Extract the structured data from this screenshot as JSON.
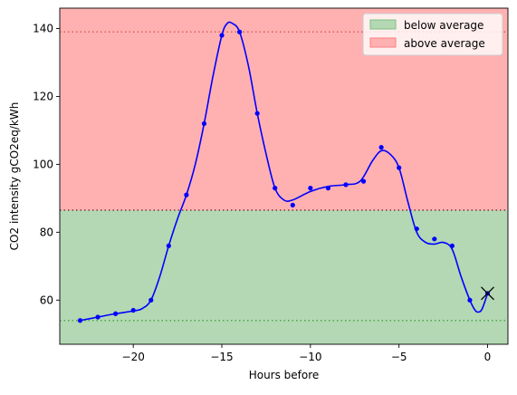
{
  "chart_data": {
    "type": "line",
    "title": "",
    "xlabel": "Hours before",
    "ylabel": "CO2 intensity gCO2eq/kWh",
    "xlim": [
      -24.15,
      1.15
    ],
    "ylim": [
      47,
      146
    ],
    "x_ticks": [
      -20,
      -15,
      -10,
      -5,
      0
    ],
    "x_tick_labels": [
      "−20",
      "−15",
      "−10",
      "−5",
      "0"
    ],
    "y_ticks": [
      60,
      80,
      100,
      120,
      140
    ],
    "y_tick_labels": [
      "60",
      "80",
      "100",
      "120",
      "140"
    ],
    "grid": false,
    "legend_position": "top-right",
    "average": 86.5,
    "min_line": 54,
    "max_line": 139,
    "bands": [
      {
        "name": "below average",
        "from": 47,
        "to": 86.5,
        "color": "#b3d8b3"
      },
      {
        "name": "above average",
        "from": 86.5,
        "to": 146,
        "color": "#ffb1b1"
      }
    ],
    "series": [
      {
        "type": "scatter",
        "color": "#0000ff",
        "x": [
          -23,
          -22,
          -21,
          -20,
          -19,
          -18,
          -17,
          -16,
          -15,
          -14,
          -13,
          -12,
          -11,
          -10,
          -9,
          -8,
          -7,
          -6,
          -5,
          -4,
          -3,
          -2,
          -1,
          0
        ],
        "y": [
          54,
          55,
          56,
          57,
          60,
          76,
          91,
          112,
          138,
          139,
          115,
          93,
          88,
          93,
          93,
          94,
          95,
          105,
          99,
          81,
          78,
          76,
          60,
          62
        ]
      },
      {
        "type": "line",
        "color": "#0000ff",
        "x": [
          -23,
          -22,
          -21,
          -20,
          -19.5,
          -19,
          -18.5,
          -18,
          -17.5,
          -17,
          -16.5,
          -16,
          -15.5,
          -15,
          -14.7,
          -14.4,
          -14,
          -13.5,
          -13,
          -12.5,
          -12,
          -11.5,
          -11,
          -10,
          -9,
          -8,
          -7.2,
          -6.5,
          -6,
          -5.5,
          -5,
          -4.5,
          -4,
          -3.5,
          -3,
          -2.5,
          -2,
          -1.5,
          -1,
          -0.7,
          -0.5,
          -0.3,
          0
        ],
        "y": [
          54,
          55,
          56,
          56.8,
          57.5,
          60,
          67,
          76,
          84,
          91,
          100,
          112,
          126,
          138,
          141.5,
          141.5,
          139,
          129,
          115,
          103,
          93,
          89.5,
          89.5,
          92,
          93.5,
          94,
          95,
          101,
          104,
          103,
          99,
          89,
          80,
          77,
          76.5,
          77,
          75,
          67,
          60,
          57,
          56.5,
          57.5,
          62
        ]
      }
    ],
    "marker": {
      "x": 0,
      "y": 62,
      "symbol": "x",
      "color": "#000000"
    }
  }
}
